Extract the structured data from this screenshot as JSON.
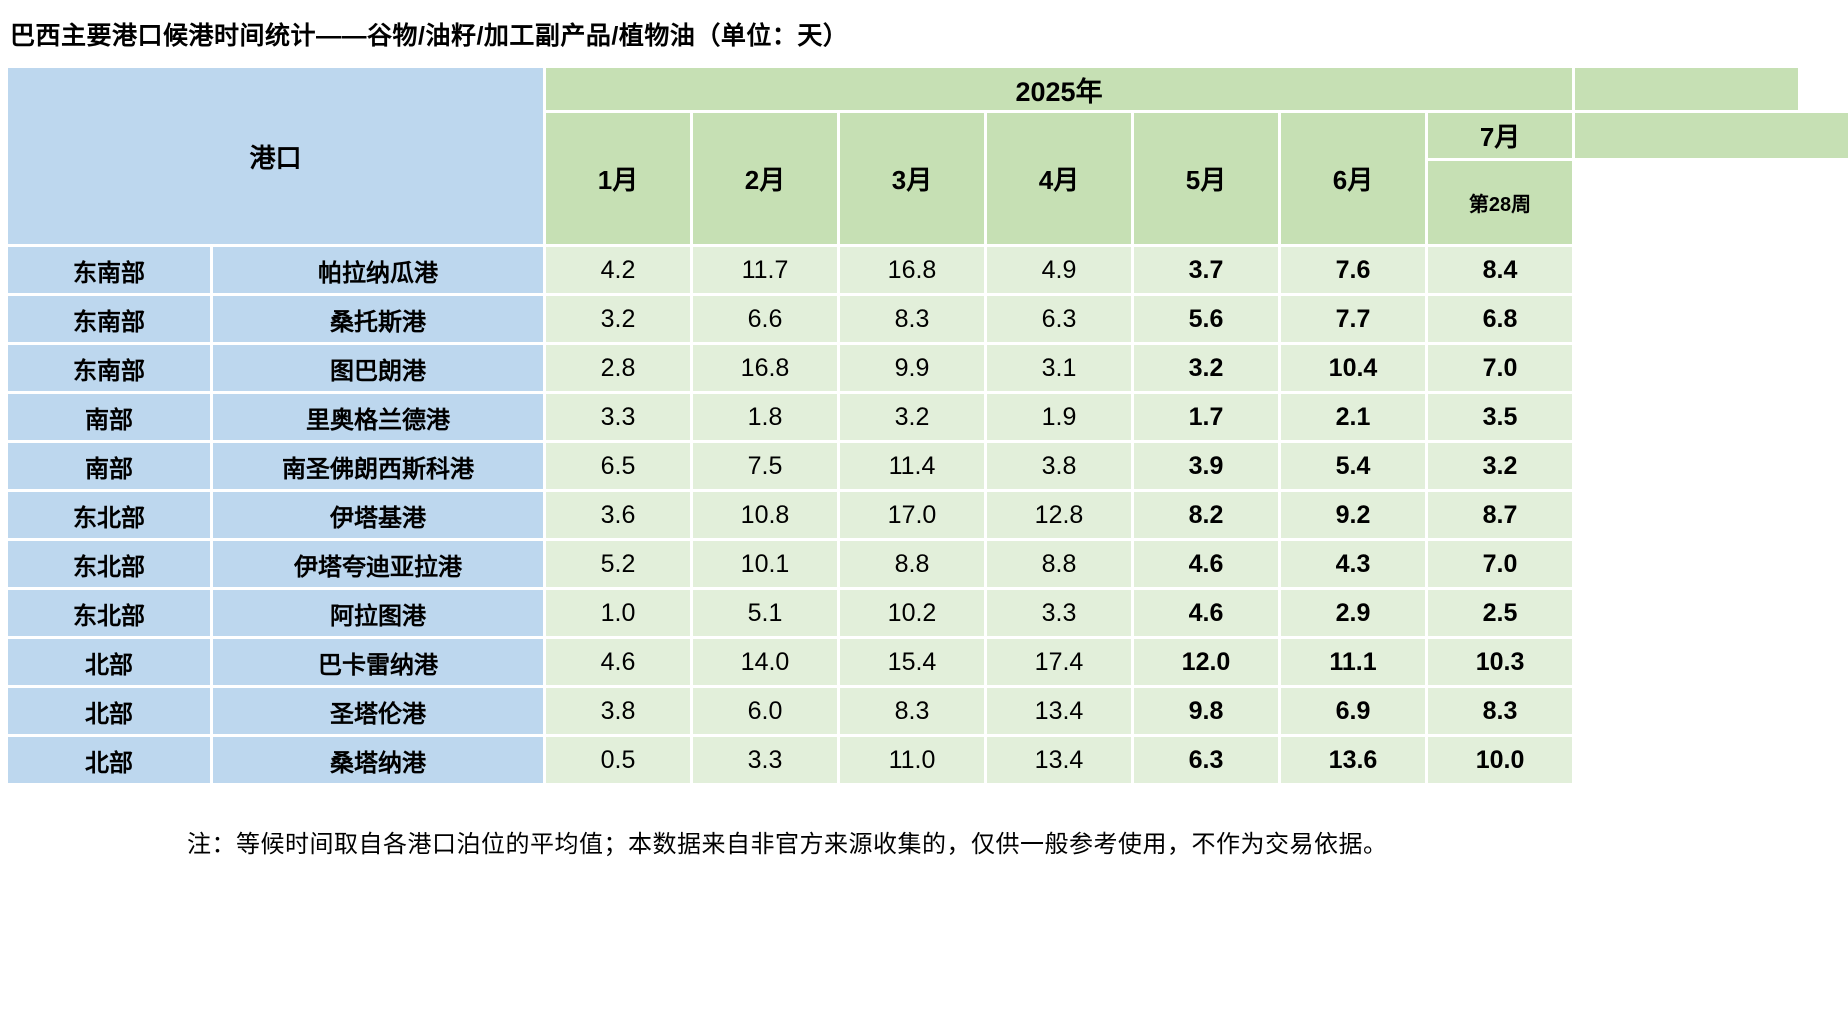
{
  "title": "巴西主要港口候港时间统计——谷物/油籽/加工副产品/植物油（单位：天）",
  "note": "注：等候时间取自各港口泊位的平均值；本数据来自非官方来源收集的，仅供一般参考使用，不作为交易依据。",
  "colors": {
    "header_blue": "#BDD7EE",
    "header_green": "#C6E0B4",
    "cell_green": "#E2EFDA",
    "grid_white": "#FFFFFF",
    "text": "#000000"
  },
  "chart_data": {
    "type": "table",
    "title": "巴西主要港口候港时间统计——谷物/油籽/加工副产品/植物油（单位：天）",
    "port_header": "港口",
    "year_header": "2025年",
    "month_headers": [
      "1月",
      "2月",
      "3月",
      "4月",
      "5月",
      "6月"
    ],
    "july_header": "7月",
    "july_subheader": "第28周",
    "bold_value_columns": [
      "5月",
      "6月",
      "7月"
    ],
    "rows": [
      {
        "region": "东南部",
        "port": "帕拉纳瓜港",
        "values": [
          "4.2",
          "11.7",
          "16.8",
          "4.9",
          "3.7",
          "7.6",
          "8.4"
        ]
      },
      {
        "region": "东南部",
        "port": "桑托斯港",
        "values": [
          "3.2",
          "6.6",
          "8.3",
          "6.3",
          "5.6",
          "7.7",
          "6.8"
        ]
      },
      {
        "region": "东南部",
        "port": "图巴朗港",
        "values": [
          "2.8",
          "16.8",
          "9.9",
          "3.1",
          "3.2",
          "10.4",
          "7.0"
        ]
      },
      {
        "region": "南部",
        "port": "里奥格兰德港",
        "values": [
          "3.3",
          "1.8",
          "3.2",
          "1.9",
          "1.7",
          "2.1",
          "3.5"
        ]
      },
      {
        "region": "南部",
        "port": "南圣佛朗西斯科港",
        "values": [
          "6.5",
          "7.5",
          "11.4",
          "3.8",
          "3.9",
          "5.4",
          "3.2"
        ]
      },
      {
        "region": "东北部",
        "port": "伊塔基港",
        "values": [
          "3.6",
          "10.8",
          "17.0",
          "12.8",
          "8.2",
          "9.2",
          "8.7"
        ]
      },
      {
        "region": "东北部",
        "port": "伊塔夸迪亚拉港",
        "values": [
          "5.2",
          "10.1",
          "8.8",
          "8.8",
          "4.6",
          "4.3",
          "7.0"
        ]
      },
      {
        "region": "东北部",
        "port": "阿拉图港",
        "values": [
          "1.0",
          "5.1",
          "10.2",
          "3.3",
          "4.6",
          "2.9",
          "2.5"
        ]
      },
      {
        "region": "北部",
        "port": "巴卡雷纳港",
        "values": [
          "4.6",
          "14.0",
          "15.4",
          "17.4",
          "12.0",
          "11.1",
          "10.3"
        ]
      },
      {
        "region": "北部",
        "port": "圣塔伦港",
        "values": [
          "3.8",
          "6.0",
          "8.3",
          "13.4",
          "9.8",
          "6.9",
          "8.3"
        ]
      },
      {
        "region": "北部",
        "port": "桑塔纳港",
        "values": [
          "0.5",
          "3.3",
          "11.0",
          "13.4",
          "6.3",
          "13.6",
          "10.0"
        ]
      }
    ]
  }
}
